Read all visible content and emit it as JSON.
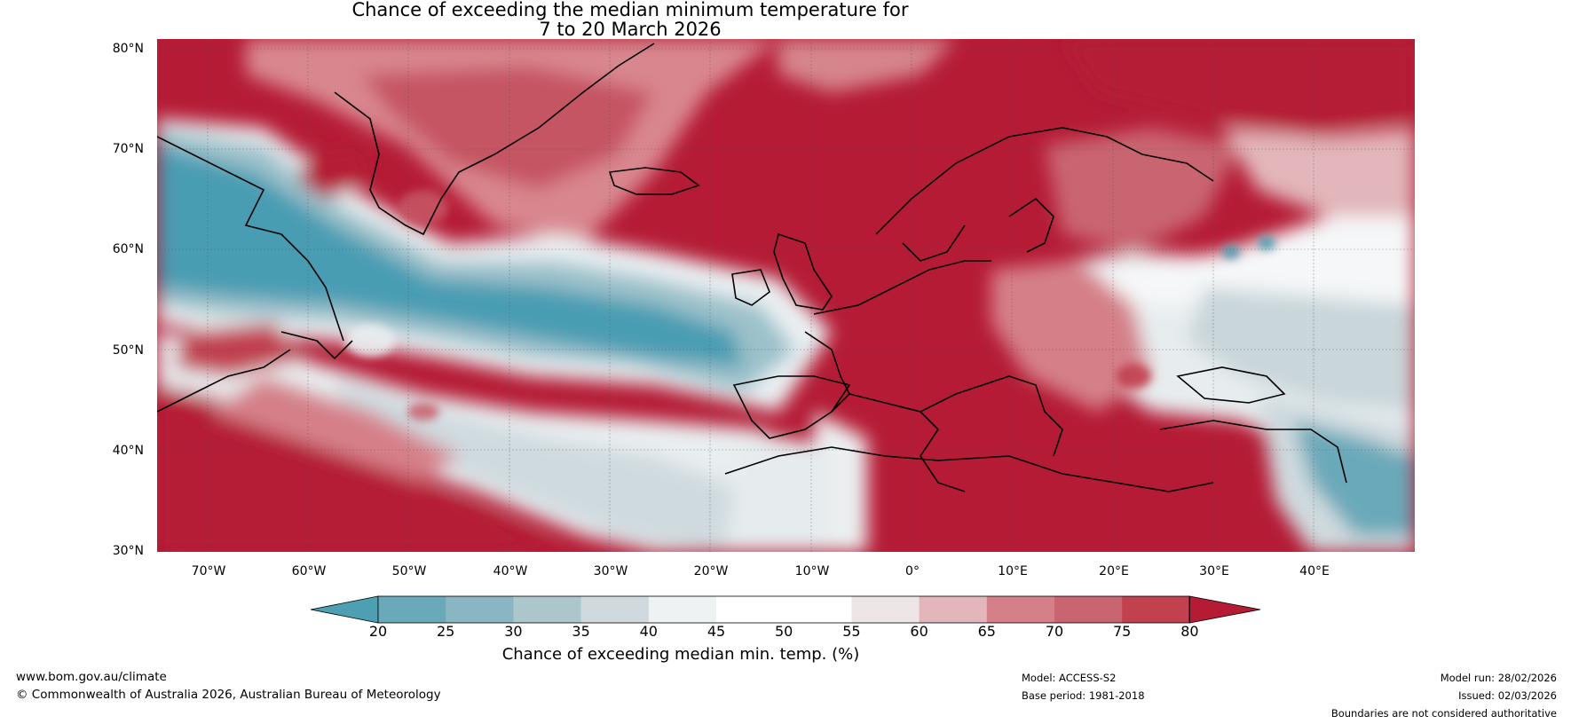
{
  "title": {
    "line1": "Chance of exceeding the median minimum temperature for",
    "line2": "7 to 20 March 2026"
  },
  "map": {
    "lat_labels": [
      "80°N",
      "70°N",
      "60°N",
      "50°N",
      "40°N",
      "30°N"
    ],
    "lon_labels": [
      "70°W",
      "60°W",
      "50°W",
      "40°W",
      "30°W",
      "20°W",
      "10°W",
      "0°",
      "10°E",
      "20°E",
      "30°E",
      "40°E"
    ],
    "lat_range": [
      30,
      81
    ],
    "lon_range": [
      -75,
      50
    ],
    "colors": {
      "strong_warm": "#b51b35",
      "warm": "#cf6e78",
      "light_warm": "#e2b0b5",
      "neutral": "#ffffff",
      "light_cool": "#ccd8dc",
      "cool": "#86b7c4",
      "strong_cool": "#4a9db3"
    }
  },
  "colorbar": {
    "ticks": [
      "20",
      "25",
      "30",
      "35",
      "40",
      "45",
      "50",
      "55",
      "60",
      "65",
      "70",
      "75",
      "80"
    ],
    "colors": [
      "#4e9fb2",
      "#6aa9b9",
      "#89b6c2",
      "#acc6cc",
      "#cfd9de",
      "#eef2f3",
      "#ffffff",
      "#ffffff",
      "#ede5e6",
      "#e2b6ba",
      "#d58089",
      "#c96571",
      "#c1414f",
      "#b51b35"
    ],
    "label": "Chance of exceeding median min. temp. (%)"
  },
  "footer": {
    "url": "www.bom.gov.au/climate",
    "copyright": "© Commonwealth of Australia 2026, Australian Bureau of Meteorology",
    "model": "Model: ACCESS-S2",
    "base_period": "Base period: 1981-2018",
    "model_run": "Model run: 28/02/2026",
    "issued": "Issued: 02/03/2026",
    "disclaimer": "Boundaries are not considered authoritative"
  }
}
